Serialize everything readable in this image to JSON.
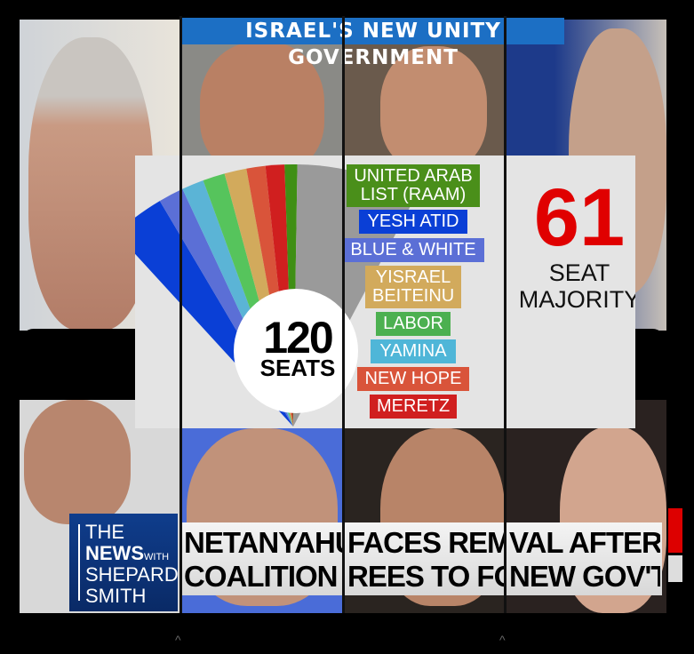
{
  "banner": {
    "title": "ISRAEL'S NEW UNITY GOVERNMENT",
    "color": "#1c6fc4"
  },
  "seat_graphic": {
    "total_number": "120",
    "total_label": "SEATS",
    "remaining_color": "#9a9a9a",
    "parties": [
      {
        "name": "YESH ATID",
        "color": "#0a3fd6",
        "seats": 17
      },
      {
        "name": "BLUE & WHITE",
        "color": "#5b6fd6",
        "seats": 8
      },
      {
        "name": "YAMINA",
        "color": "#5bb4d6",
        "seats": 7
      },
      {
        "name": "LABOR",
        "color": "#56c45c",
        "seats": 7
      },
      {
        "name": "YISRAEL BEITEINU",
        "color": "#d2aa5c",
        "seats": 7
      },
      {
        "name": "NEW HOPE",
        "color": "#d9543a",
        "seats": 6
      },
      {
        "name": "MERETZ",
        "color": "#d01f1f",
        "seats": 6
      },
      {
        "name": "UNITED ARAB LIST (RAAM)",
        "color": "#3f8f14",
        "seats": 4
      }
    ],
    "legend": [
      {
        "line1": "UNITED ARAB",
        "line2": "LIST (RAAM)",
        "color": "#4a8f1a"
      },
      {
        "line1": "YESH ATID",
        "color": "#0a3fd6"
      },
      {
        "line1": "BLUE & WHITE",
        "color": "#5b6fd6"
      },
      {
        "line1": "YISRAEL",
        "line2": "BEITEINU",
        "color": "#d2aa5c"
      },
      {
        "line1": "LABOR",
        "color": "#4cb050"
      },
      {
        "line1": "YAMINA",
        "color": "#4fb6d8"
      },
      {
        "line1": "NEW HOPE",
        "color": "#d9543a"
      },
      {
        "line1": "MERETZ",
        "color": "#d01f1f"
      }
    ]
  },
  "majority": {
    "number": "61",
    "line1": "SEAT",
    "line2": "MAJORITY",
    "color": "#e00000"
  },
  "show_logo": {
    "line1": "THE",
    "line2": "NEWS",
    "line2_small": "WITH",
    "line3": "SHEPARD",
    "line4": "SMITH"
  },
  "headline": {
    "cells": [
      {
        "line1": "NETANYAHU",
        "line2": "COALITION AG"
      },
      {
        "line1": "FACES REMO",
        "line2": "REES TO FORM"
      },
      {
        "line1": "VAL AFTER",
        "line2": "NEW GOV'T"
      }
    ]
  },
  "carets": [
    "^",
    "^"
  ]
}
